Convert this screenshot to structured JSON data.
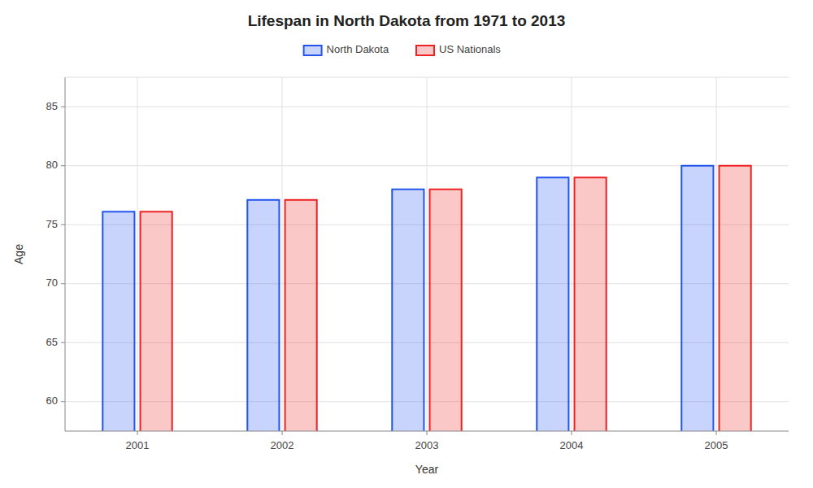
{
  "chart_data": {
    "type": "bar",
    "title": "Lifespan in North Dakota from 1971 to 2013",
    "x_label": "Year",
    "y_label": "Age",
    "categories": [
      "2001",
      "2002",
      "2003",
      "2004",
      "2005"
    ],
    "series": [
      {
        "name": "North Dakota",
        "color": "#2255ee",
        "values": [
          76.1,
          77.1,
          78.0,
          79.0,
          80.0
        ]
      },
      {
        "name": "US Nationals",
        "color": "#ee2222",
        "values": [
          76.1,
          77.1,
          78.0,
          79.0,
          80.0
        ]
      }
    ],
    "ylim": [
      57.5,
      87.5
    ],
    "yticks": [
      60,
      65,
      70,
      75,
      80,
      85
    ],
    "grid": true,
    "legend": "top"
  }
}
